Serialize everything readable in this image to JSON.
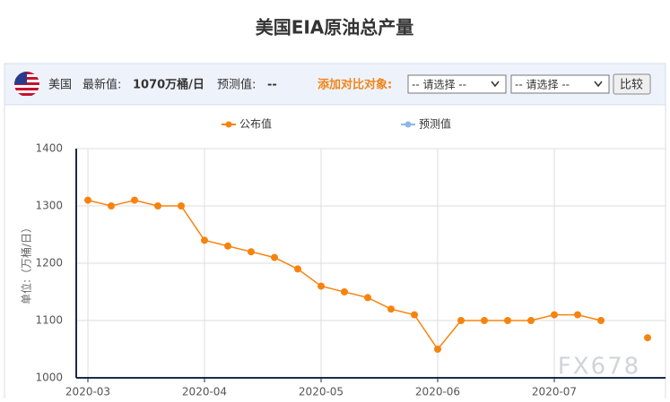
{
  "header": {
    "title": "美国EIA原油总产量"
  },
  "toolbar": {
    "country": "美国",
    "latest_label": "最新值:",
    "latest_value": "1070万桶/日",
    "forecast_label": "预测值:",
    "forecast_value": "--",
    "compare_label": "添加对比对象:",
    "select_1": "-- 请选择 --",
    "select_2": "-- 请选择 --",
    "button": "比较"
  },
  "chart_data": {
    "type": "line",
    "y_label": "单位:（万桶/日）",
    "watermark": "FX678",
    "categories": [
      "2020-03",
      null,
      null,
      null,
      null,
      "2020-04",
      null,
      null,
      null,
      null,
      "2020-05",
      null,
      null,
      null,
      null,
      "2020-06",
      null,
      null,
      null,
      null,
      "2020-07",
      null,
      null,
      null,
      null
    ],
    "series": [
      {
        "name": "公布值",
        "color": "#f7830f",
        "values": [
          1310,
          1300,
          1310,
          1300,
          1300,
          1240,
          1230,
          1220,
          1210,
          1190,
          1160,
          1150,
          1140,
          1120,
          1110,
          1050,
          1100,
          1100,
          1100,
          1100,
          1110,
          1110,
          1100,
          null,
          1070
        ]
      },
      {
        "name": "预测值",
        "color": "#8cb8e6",
        "values": [
          null,
          null,
          null,
          null,
          null,
          null,
          null,
          null,
          null,
          null,
          null,
          null,
          null,
          null,
          null,
          null,
          null,
          null,
          null,
          null,
          null,
          null,
          null,
          null,
          null
        ]
      }
    ],
    "ylim": [
      1000,
      1400
    ],
    "yticks": [
      1000,
      1100,
      1200,
      1300,
      1400
    ],
    "grid": true
  }
}
